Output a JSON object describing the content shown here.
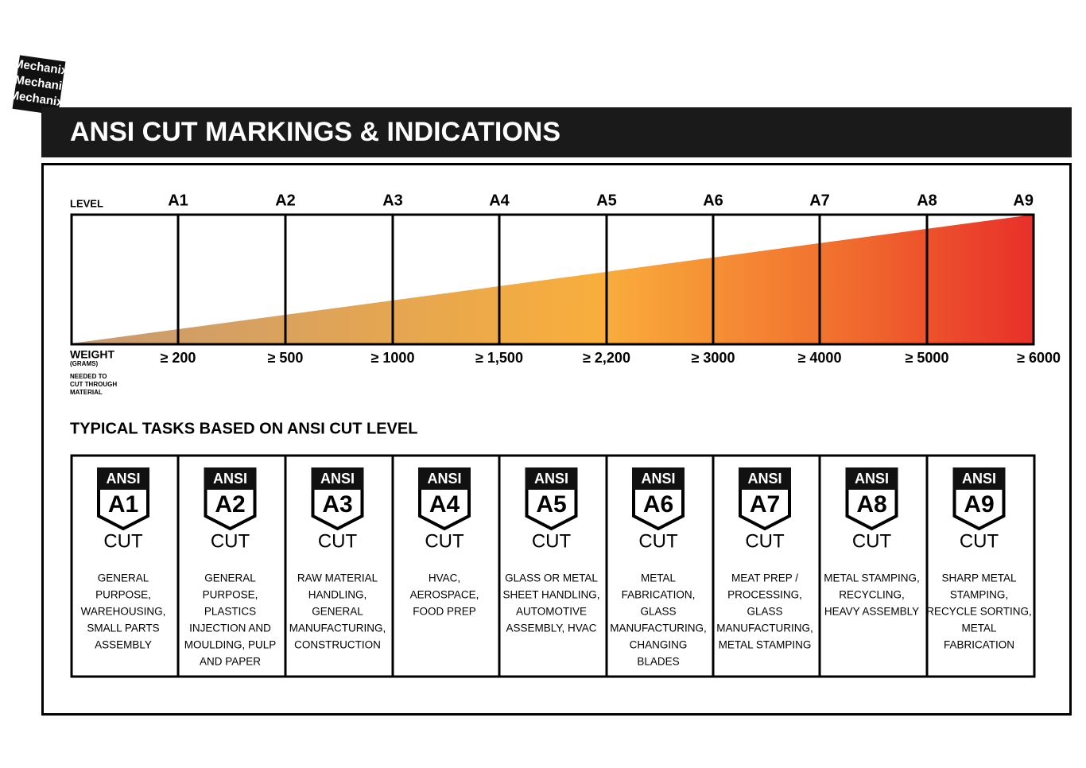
{
  "logo": "Mechanix",
  "header": {
    "title": "ANSI CUT MARKINGS & INDICATIONS"
  },
  "scale": {
    "level_label": "LEVEL",
    "levels": [
      "A1",
      "A2",
      "A3",
      "A4",
      "A5",
      "A6",
      "A7",
      "A8",
      "A9"
    ],
    "weight_label": "WEIGHT",
    "weight_unit": "(GRAMS)",
    "weight_note": [
      "NEEDED TO",
      "CUT THROUGH",
      "MATERIAL"
    ],
    "weights": [
      "≥ 200",
      "≥ 500",
      "≥ 1000",
      "≥ 1,500",
      "≥ 2,200",
      "≥ 3000",
      "≥ 4000",
      "≥ 5000",
      "≥ 6000"
    ]
  },
  "tasks": {
    "title": "TYPICAL TASKS BASED ON ANSI CUT LEVEL",
    "cards": [
      {
        "badge_top": "ANSI",
        "badge_level": "A1",
        "badge_bottom": "CUT",
        "lines": [
          "GENERAL",
          "PURPOSE,",
          "WAREHOUSING,",
          "SMALL PARTS",
          "ASSEMBLY"
        ]
      },
      {
        "badge_top": "ANSI",
        "badge_level": "A2",
        "badge_bottom": "CUT",
        "lines": [
          "GENERAL",
          "PURPOSE,",
          "PLASTICS",
          "INJECTION AND",
          "MOULDING, PULP",
          "AND PAPER"
        ]
      },
      {
        "badge_top": "ANSI",
        "badge_level": "A3",
        "badge_bottom": "CUT",
        "lines": [
          "RAW MATERIAL",
          "HANDLING,",
          "GENERAL",
          "MANUFACTURING,",
          "CONSTRUCTION"
        ]
      },
      {
        "badge_top": "ANSI",
        "badge_level": "A4",
        "badge_bottom": "CUT",
        "lines": [
          "HVAC,",
          "AEROSPACE,",
          "FOOD PREP"
        ]
      },
      {
        "badge_top": "ANSI",
        "badge_level": "A5",
        "badge_bottom": "CUT",
        "lines": [
          "GLASS OR METAL",
          "SHEET HANDLING,",
          "AUTOMOTIVE",
          "ASSEMBLY, HVAC"
        ]
      },
      {
        "badge_top": "ANSI",
        "badge_level": "A6",
        "badge_bottom": "CUT",
        "lines": [
          "METAL",
          "FABRICATION,",
          "GLASS",
          "MANUFACTURING,",
          "CHANGING",
          "BLADES"
        ]
      },
      {
        "badge_top": "ANSI",
        "badge_level": "A7",
        "badge_bottom": "CUT",
        "lines": [
          "MEAT PREP /",
          "PROCESSING,",
          "GLASS",
          "MANUFACTURING,",
          "METAL STAMPING"
        ]
      },
      {
        "badge_top": "ANSI",
        "badge_level": "A8",
        "badge_bottom": "CUT",
        "lines": [
          "METAL STAMPING,",
          "RECYCLING,",
          "HEAVY ASSEMBLY"
        ]
      },
      {
        "badge_top": "ANSI",
        "badge_level": "A9",
        "badge_bottom": "CUT",
        "lines": [
          "SHARP METAL",
          "STAMPING,",
          "RECYCLE SORTING,",
          "METAL",
          "FABRICATION"
        ]
      }
    ]
  }
}
